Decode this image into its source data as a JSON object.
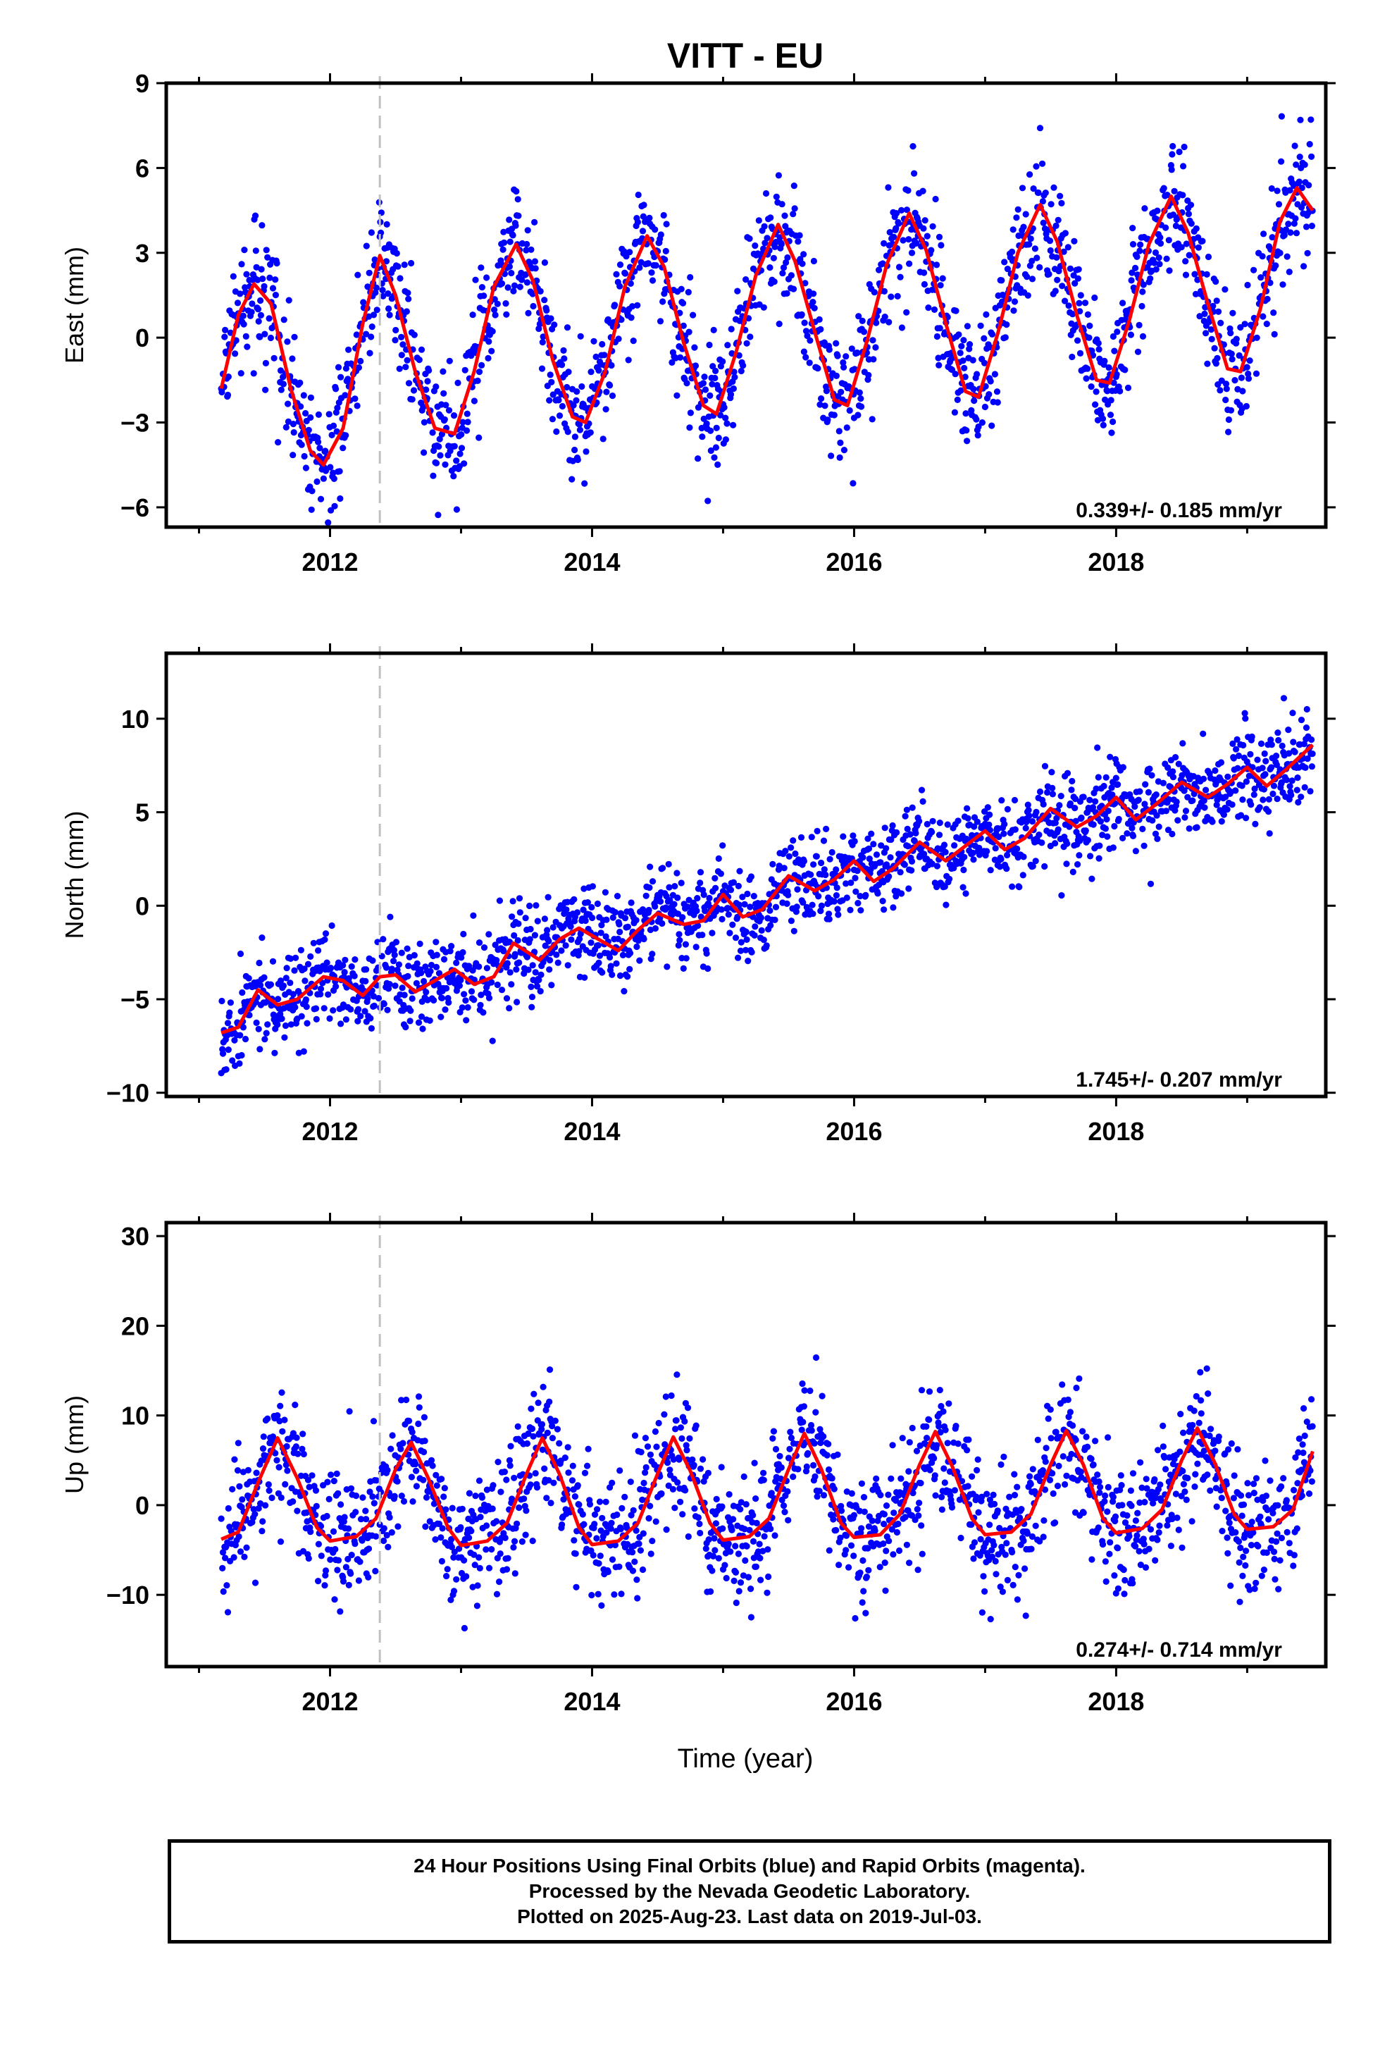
{
  "title": "VITT - EU",
  "xlabel": "Time (year)",
  "colors": {
    "points": "#0000ff",
    "fit": "#ff0000",
    "marker": "#c0c0c0",
    "axis": "#000000"
  },
  "footer": {
    "line1": "24 Hour Positions Using Final Orbits (blue) and Rapid Orbits (magenta).",
    "line2": "Processed by the Nevada Geodetic Laboratory.",
    "line3": "Plotted on 2025-Aug-23. Last data on 2019-Jul-03."
  },
  "chart_data": [
    {
      "type": "scatter",
      "ylabel": "East (mm)",
      "xlim": [
        2010.75,
        2019.6
      ],
      "ylim": [
        -6.7,
        9
      ],
      "yticks": [
        -6,
        -3,
        0,
        3,
        6,
        9
      ],
      "xticks": [
        2012,
        2014,
        2016,
        2018
      ],
      "vline": 2012.38,
      "rate_label": "0.339+/- 0.185 mm/yr",
      "fit": {
        "x": [
          2011.17,
          2011.3,
          2011.42,
          2011.55,
          2011.7,
          2011.85,
          2011.95,
          2012.1,
          2012.25,
          2012.38,
          2012.5,
          2012.65,
          2012.8,
          2012.95,
          2013.1,
          2013.25,
          2013.42,
          2013.55,
          2013.7,
          2013.85,
          2013.95,
          2014.1,
          2014.25,
          2014.42,
          2014.55,
          2014.7,
          2014.85,
          2014.95,
          2015.1,
          2015.25,
          2015.42,
          2015.55,
          2015.7,
          2015.85,
          2015.95,
          2016.1,
          2016.25,
          2016.42,
          2016.55,
          2016.7,
          2016.85,
          2016.95,
          2017.1,
          2017.25,
          2017.42,
          2017.55,
          2017.7,
          2017.85,
          2017.95,
          2018.1,
          2018.25,
          2018.42,
          2018.55,
          2018.7,
          2018.85,
          2018.95,
          2019.1,
          2019.25,
          2019.38,
          2019.5
        ],
        "y": [
          -1.8,
          0.8,
          1.9,
          1.2,
          -1.8,
          -4.0,
          -4.5,
          -3.2,
          0.5,
          2.9,
          1.5,
          -1.2,
          -3.2,
          -3.4,
          -1.2,
          1.8,
          3.3,
          2.0,
          -0.8,
          -2.8,
          -3.0,
          -1.2,
          1.8,
          3.6,
          2.5,
          -0.2,
          -2.4,
          -2.7,
          -0.5,
          2.2,
          4.0,
          2.7,
          0.2,
          -2.2,
          -2.4,
          -0.1,
          2.6,
          4.4,
          3.1,
          0.5,
          -1.9,
          -2.1,
          0.2,
          3.0,
          4.7,
          3.4,
          0.8,
          -1.5,
          -1.6,
          0.6,
          3.3,
          5.0,
          3.7,
          1.2,
          -1.1,
          -1.2,
          1.0,
          4.1,
          5.3,
          4.5
        ]
      }
    },
    {
      "type": "scatter",
      "ylabel": "North (mm)",
      "xlim": [
        2010.75,
        2019.6
      ],
      "ylim": [
        -10.2,
        13.5
      ],
      "yticks": [
        -10,
        -5,
        0,
        5,
        10
      ],
      "xticks": [
        2012,
        2014,
        2016,
        2018
      ],
      "vline": 2012.38,
      "rate_label": "1.745+/- 0.207 mm/yr",
      "fit": {
        "x": [
          2011.17,
          2011.3,
          2011.45,
          2011.6,
          2011.75,
          2011.95,
          2012.1,
          2012.25,
          2012.38,
          2012.5,
          2012.65,
          2012.8,
          2012.95,
          2013.1,
          2013.25,
          2013.4,
          2013.6,
          2013.75,
          2013.9,
          2014.05,
          2014.2,
          2014.35,
          2014.5,
          2014.7,
          2014.85,
          2015.0,
          2015.15,
          2015.3,
          2015.5,
          2015.7,
          2015.85,
          2016.0,
          2016.15,
          2016.3,
          2016.5,
          2016.7,
          2016.85,
          2017.0,
          2017.15,
          2017.3,
          2017.5,
          2017.7,
          2017.85,
          2018.0,
          2018.15,
          2018.3,
          2018.5,
          2018.7,
          2018.85,
          2019.0,
          2019.15,
          2019.3,
          2019.5
        ],
        "y": [
          -6.8,
          -6.5,
          -4.5,
          -5.3,
          -5.0,
          -3.8,
          -4.0,
          -4.8,
          -3.8,
          -3.7,
          -4.6,
          -4.0,
          -3.4,
          -4.2,
          -3.8,
          -2.0,
          -2.9,
          -1.8,
          -1.2,
          -1.8,
          -2.4,
          -1.3,
          -0.4,
          -1.0,
          -0.8,
          0.6,
          -0.6,
          -0.2,
          1.6,
          0.8,
          1.4,
          2.4,
          1.3,
          2.0,
          3.4,
          2.4,
          3.2,
          4.0,
          3.0,
          3.6,
          5.2,
          4.2,
          4.8,
          5.8,
          4.6,
          5.4,
          6.6,
          5.8,
          6.5,
          7.4,
          6.4,
          7.3,
          8.6
        ]
      }
    },
    {
      "type": "scatter",
      "ylabel": "Up (mm)",
      "xlim": [
        2010.75,
        2019.6
      ],
      "ylim": [
        -18,
        31.5
      ],
      "yticks": [
        -10,
        0,
        10,
        20,
        30
      ],
      "xticks": [
        2012,
        2014,
        2016,
        2018
      ],
      "vline": 2012.38,
      "rate_label": "0.274+/- 0.714 mm/yr",
      "fit": {
        "x": [
          2011.17,
          2011.3,
          2011.45,
          2011.6,
          2011.75,
          2011.9,
          2012.0,
          2012.2,
          2012.35,
          2012.5,
          2012.62,
          2012.75,
          2012.9,
          2013.0,
          2013.2,
          2013.35,
          2013.5,
          2013.62,
          2013.75,
          2013.9,
          2014.0,
          2014.2,
          2014.35,
          2014.5,
          2014.62,
          2014.75,
          2014.9,
          2015.0,
          2015.2,
          2015.35,
          2015.5,
          2015.62,
          2015.75,
          2015.9,
          2016.0,
          2016.2,
          2016.35,
          2016.5,
          2016.62,
          2016.75,
          2016.9,
          2017.0,
          2017.2,
          2017.35,
          2017.5,
          2017.62,
          2017.75,
          2017.9,
          2018.0,
          2018.2,
          2018.35,
          2018.5,
          2018.62,
          2018.75,
          2018.9,
          2019.0,
          2019.2,
          2019.35,
          2019.5
        ],
        "y": [
          -3.8,
          -3.0,
          2.5,
          7.5,
          3.0,
          -2.5,
          -4.0,
          -3.5,
          -1.5,
          4.0,
          7.0,
          3.0,
          -2.5,
          -4.5,
          -4.0,
          -2.0,
          3.5,
          7.5,
          3.5,
          -2.5,
          -4.4,
          -4.0,
          -2.0,
          3.5,
          7.6,
          3.8,
          -2.0,
          -3.9,
          -3.5,
          -1.5,
          4.0,
          8.0,
          4.0,
          -2.0,
          -3.6,
          -3.3,
          -1.0,
          4.5,
          8.2,
          4.3,
          -1.5,
          -3.3,
          -3.0,
          -1.0,
          4.5,
          8.3,
          4.5,
          -1.5,
          -3.1,
          -2.6,
          -0.5,
          5.0,
          8.6,
          4.8,
          -1.0,
          -2.7,
          -2.4,
          -0.5,
          6.0
        ]
      }
    }
  ]
}
